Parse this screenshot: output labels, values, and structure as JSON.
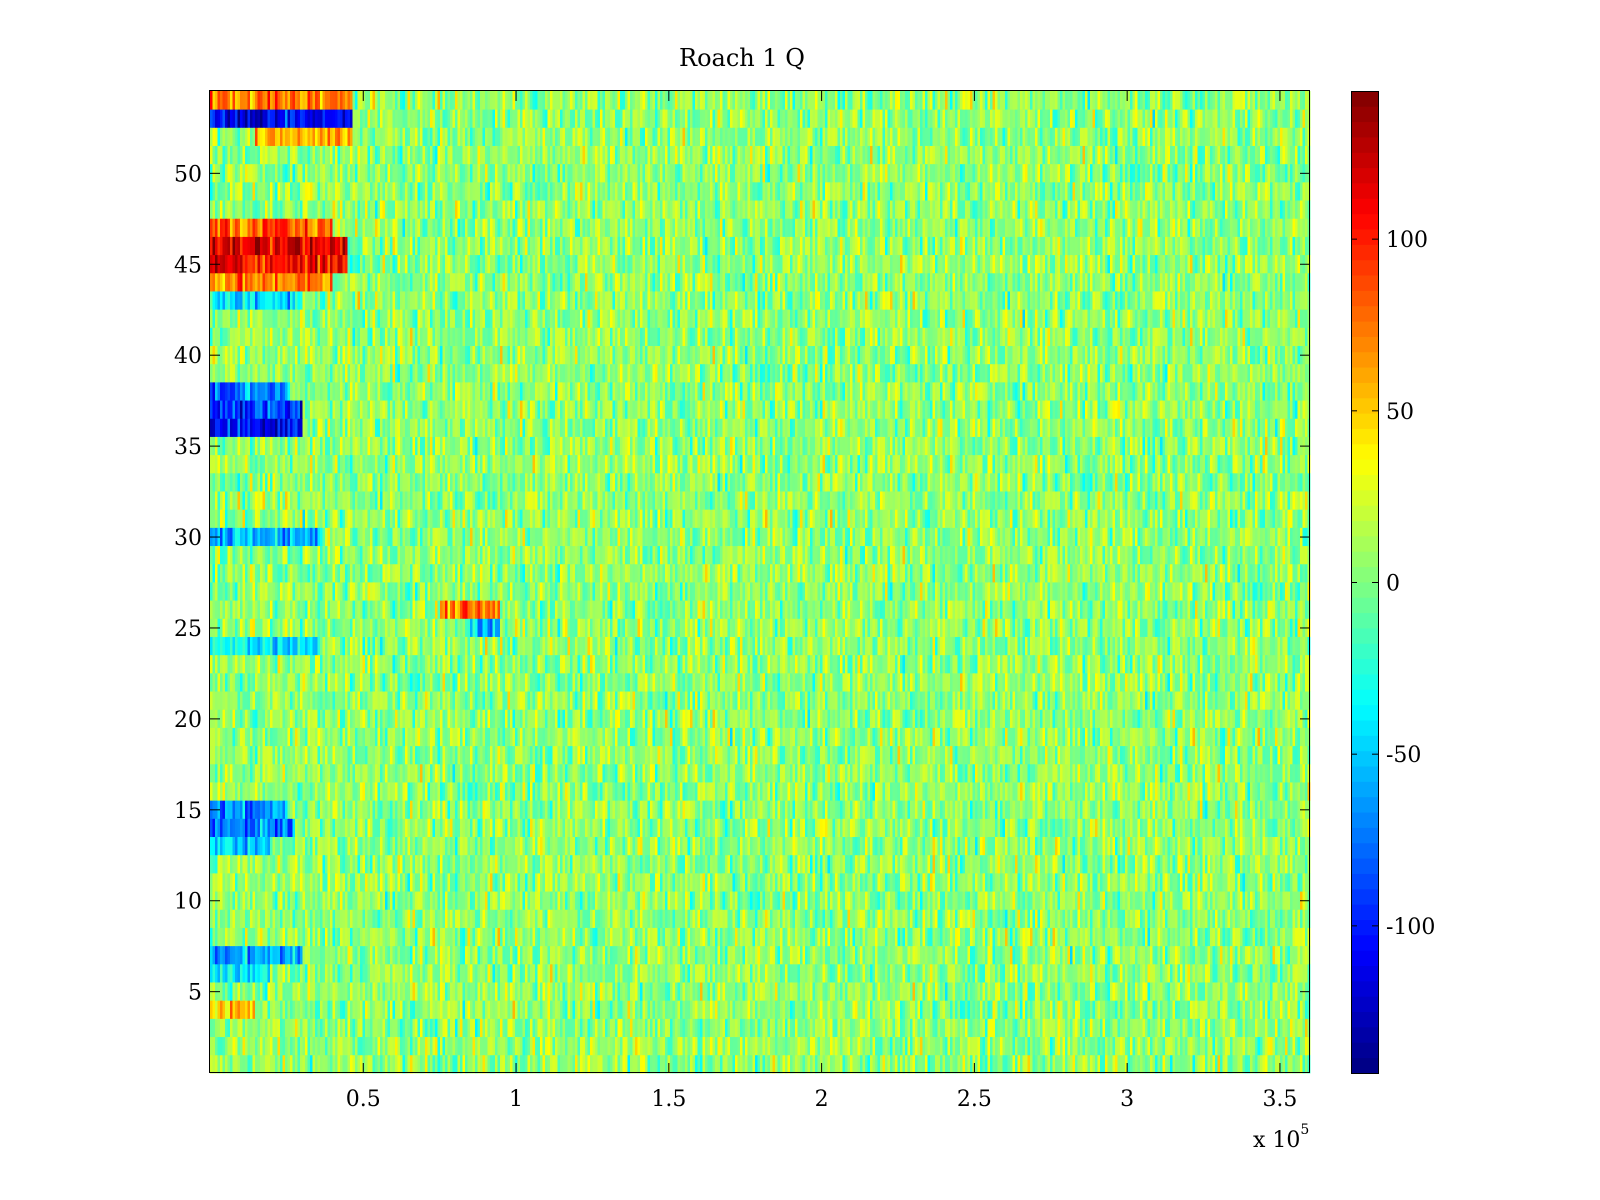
{
  "chart_data": {
    "type": "heatmap",
    "title": "Roach 1 Q",
    "xlabel": "",
    "ylabel": "",
    "x_multiplier": "x 10",
    "x_multiplier_exponent": "5",
    "xlim": [
      0,
      360000
    ],
    "ylim": [
      0.5,
      54.5
    ],
    "x_ticks": [
      0.5,
      1,
      1.5,
      2,
      2.5,
      3,
      3.5
    ],
    "x_tick_labels": [
      "0.5",
      "1",
      "1.5",
      "2",
      "2.5",
      "3",
      "3.5"
    ],
    "y_ticks": [
      5,
      10,
      15,
      20,
      25,
      30,
      35,
      40,
      45,
      50
    ],
    "y_tick_labels": [
      "5",
      "10",
      "15",
      "20",
      "25",
      "30",
      "35",
      "40",
      "45",
      "50"
    ],
    "rows": 54,
    "colormap": "jet",
    "clim": [
      -143,
      143
    ],
    "colorbar": {
      "ticks": [
        -100,
        -50,
        0,
        50,
        100
      ],
      "tick_labels": [
        "-100",
        "-50",
        "0",
        "50",
        "100"
      ]
    },
    "background_mean": 5,
    "background_noise_amplitude": 32,
    "features": [
      {
        "row": 54,
        "x_range": [
          0,
          47000
        ],
        "value": 70
      },
      {
        "row": 53,
        "x_range": [
          0,
          47000
        ],
        "value": -110
      },
      {
        "row": 52,
        "x_range": [
          15000,
          47000
        ],
        "value": 60
      },
      {
        "row": 47,
        "x_range": [
          0,
          40000
        ],
        "value": 85
      },
      {
        "row": 46,
        "x_range": [
          0,
          45000
        ],
        "value": 115
      },
      {
        "row": 45,
        "x_range": [
          0,
          45000
        ],
        "value": 105
      },
      {
        "row": 44,
        "x_range": [
          0,
          40000
        ],
        "value": 70
      },
      {
        "row": 43,
        "x_range": [
          0,
          30000
        ],
        "value": -45
      },
      {
        "row": 38,
        "x_range": [
          0,
          25000
        ],
        "value": -75
      },
      {
        "row": 37,
        "x_range": [
          0,
          30000
        ],
        "value": -95
      },
      {
        "row": 36,
        "x_range": [
          0,
          30000
        ],
        "value": -110
      },
      {
        "row": 30,
        "x_range": [
          0,
          37000
        ],
        "value": -60
      },
      {
        "row": 26,
        "x_range": [
          75000,
          95000
        ],
        "value": 70
      },
      {
        "row": 25,
        "x_range": [
          85000,
          95000
        ],
        "value": -55
      },
      {
        "row": 24,
        "x_range": [
          0,
          35000
        ],
        "value": -40
      },
      {
        "row": 15,
        "x_range": [
          0,
          25000
        ],
        "value": -70
      },
      {
        "row": 14,
        "x_range": [
          0,
          28000
        ],
        "value": -75
      },
      {
        "row": 13,
        "x_range": [
          0,
          20000
        ],
        "value": -45
      },
      {
        "row": 7,
        "x_range": [
          0,
          30000
        ],
        "value": -60
      },
      {
        "row": 6,
        "x_range": [
          0,
          20000
        ],
        "value": -40
      },
      {
        "row": 4,
        "x_range": [
          0,
          15000
        ],
        "value": 55
      }
    ]
  }
}
